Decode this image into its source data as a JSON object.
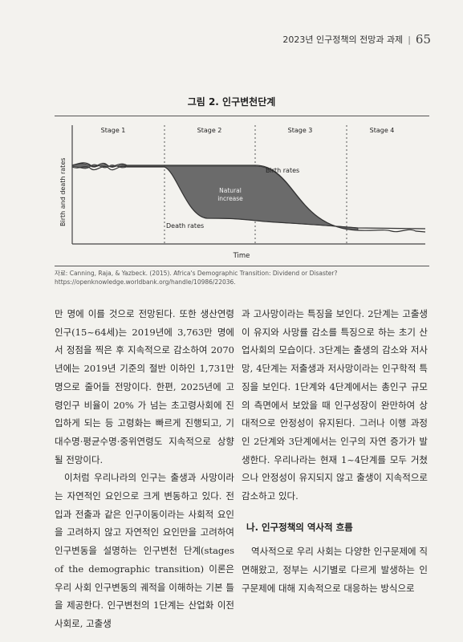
{
  "header": {
    "running_title": "2023년 인구정책의 전망과 과제",
    "page_number": "65"
  },
  "figure": {
    "title": "그림 2. 인구변천단계",
    "source": "자료: Canning, Raja, & Yazbeck. (2015). Africa's Demographic Transition: Dividend or Disaster? https://openknowledge.worldbank.org/handle/10986/22036."
  },
  "chart_data": {
    "type": "area",
    "title": "",
    "xlabel": "Time",
    "ylabel": "Birth and death rates",
    "stages": [
      "Stage 1",
      "Stage 2",
      "Stage 3",
      "Stage 4"
    ],
    "annotations": [
      "Birth rates",
      "Death rates",
      "Natural increase"
    ],
    "fill_color": "#6b6b6b",
    "grid": false
  },
  "body": {
    "left": [
      "만 명에 이를 것으로 전망된다. 또한 생산연령인구(15~64세)는 2019년에 3,763만 명에서 정점을 찍은 후 지속적으로 감소하여 2070년에는 2019년 기준의 절반 이하인 1,731만 명으로 줄어들 전망이다. 한편, 2025년에 고령인구 비율이 20% 가 넘는 초고령사회에 진입하게 되는 등 고령화는 빠르게 진행되고, 기대수명·평균수명·중위연령도 지속적으로 상향될 전망이다.",
      "이처럼 우리나라의 인구는 출생과 사망이라는 자연적인 요인으로 크게 변동하고 있다. 전입과 전출과 같은 인구이동이라는 사회적 요인을 고려하지 않고 자연적인 요인만을 고려하여 인구변동을 설명하는 인구변천 단계(stages of the demographic transition) 이론은 우리 사회 인구변동의 궤적을 이해하는 기본 틀을 제공한다. 인구변천의 1단계는 산업화 이전 사회로, 고출생"
    ],
    "right": [
      "과 고사망이라는 특징을 보인다. 2단계는 고출생이 유지와 사망률 감소를 특징으로 하는 초기 산업사회의 모습이다. 3단계는 출생의 감소와 저사망, 4단계는 저출생과 저사망이라는 인구학적 특징을 보인다. 1단계와 4단계에서는 총인구 규모의 측면에서 보았을 때 인구성장이 완만하여 상대적으로 안정성이 유지된다. 그러나 이행 과정인 2단계와 3단계에서는 인구의 자연 증가가 발생한다. 우리나라는 현재 1~4단계를 모두 거쳤으나 안정성이 유지되지 않고 출생이 지속적으로 감소하고 있다."
    ],
    "subheading": "나. 인구정책의 역사적 흐름",
    "right_after": "역사적으로 우리 사회는 다양한 인구문제에 직면해왔고, 정부는 시기별로 다르게 발생하는 인구문제에 대해 지속적으로 대응하는 방식으로"
  }
}
